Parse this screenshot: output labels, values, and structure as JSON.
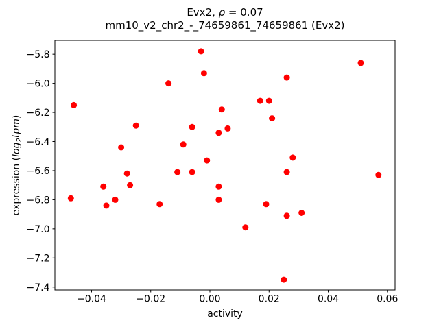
{
  "chart_data": {
    "type": "scatter",
    "title_parts": {
      "prefix": "Evx2, ",
      "rho": "ρ",
      "suffix": " = 0.07"
    },
    "subtitle": "mm10_v2_chr2_-_74659861_74659861 (Evx2)",
    "xlabel": "activity",
    "ylabel_parts": {
      "prefix": "expression (",
      "log": "log",
      "sub": "2",
      "tpm": "tpm",
      "suffix": ")"
    },
    "marker": "circle",
    "marker_color": "#ff0000",
    "axis_color": "#000000",
    "grid": false,
    "legend": "none",
    "xlim": [
      -0.0524,
      0.0626
    ],
    "ylim": [
      -7.42,
      -5.705
    ],
    "xticks": [
      {
        "value": -0.04,
        "label": "−0.04"
      },
      {
        "value": -0.02,
        "label": "−0.02"
      },
      {
        "value": 0.0,
        "label": "0.00"
      },
      {
        "value": 0.02,
        "label": "0.02"
      },
      {
        "value": 0.04,
        "label": "0.04"
      },
      {
        "value": 0.06,
        "label": "0.06"
      }
    ],
    "yticks": [
      {
        "value": -5.8,
        "label": "−5.8"
      },
      {
        "value": -6.0,
        "label": "−6.0"
      },
      {
        "value": -6.2,
        "label": "−6.2"
      },
      {
        "value": -6.4,
        "label": "−6.4"
      },
      {
        "value": -6.6,
        "label": "−6.6"
      },
      {
        "value": -6.8,
        "label": "−6.8"
      },
      {
        "value": -7.0,
        "label": "−7.0"
      },
      {
        "value": -7.2,
        "label": "−7.2"
      },
      {
        "value": -7.4,
        "label": "−7.4"
      }
    ],
    "points": [
      [
        -0.047,
        -6.79
      ],
      [
        -0.046,
        -6.15
      ],
      [
        -0.036,
        -6.71
      ],
      [
        -0.035,
        -6.84
      ],
      [
        -0.032,
        -6.8
      ],
      [
        -0.03,
        -6.44
      ],
      [
        -0.028,
        -6.62
      ],
      [
        -0.027,
        -6.7
      ],
      [
        -0.025,
        -6.29
      ],
      [
        -0.017,
        -6.83
      ],
      [
        -0.014,
        -6.0
      ],
      [
        -0.011,
        -6.61
      ],
      [
        -0.009,
        -6.42
      ],
      [
        -0.006,
        -6.3
      ],
      [
        -0.006,
        -6.61
      ],
      [
        -0.003,
        -5.78
      ],
      [
        -0.002,
        -5.93
      ],
      [
        -0.001,
        -6.53
      ],
      [
        0.003,
        -6.34
      ],
      [
        0.003,
        -6.71
      ],
      [
        0.003,
        -6.8
      ],
      [
        0.004,
        -6.18
      ],
      [
        0.006,
        -6.31
      ],
      [
        0.012,
        -6.99
      ],
      [
        0.017,
        -6.12
      ],
      [
        0.019,
        -6.83
      ],
      [
        0.02,
        -6.12
      ],
      [
        0.021,
        -6.24
      ],
      [
        0.025,
        -7.35
      ],
      [
        0.026,
        -5.96
      ],
      [
        0.026,
        -6.61
      ],
      [
        0.026,
        -6.91
      ],
      [
        0.028,
        -6.51
      ],
      [
        0.031,
        -6.89
      ],
      [
        0.051,
        -5.86
      ],
      [
        0.057,
        -6.63
      ]
    ]
  }
}
